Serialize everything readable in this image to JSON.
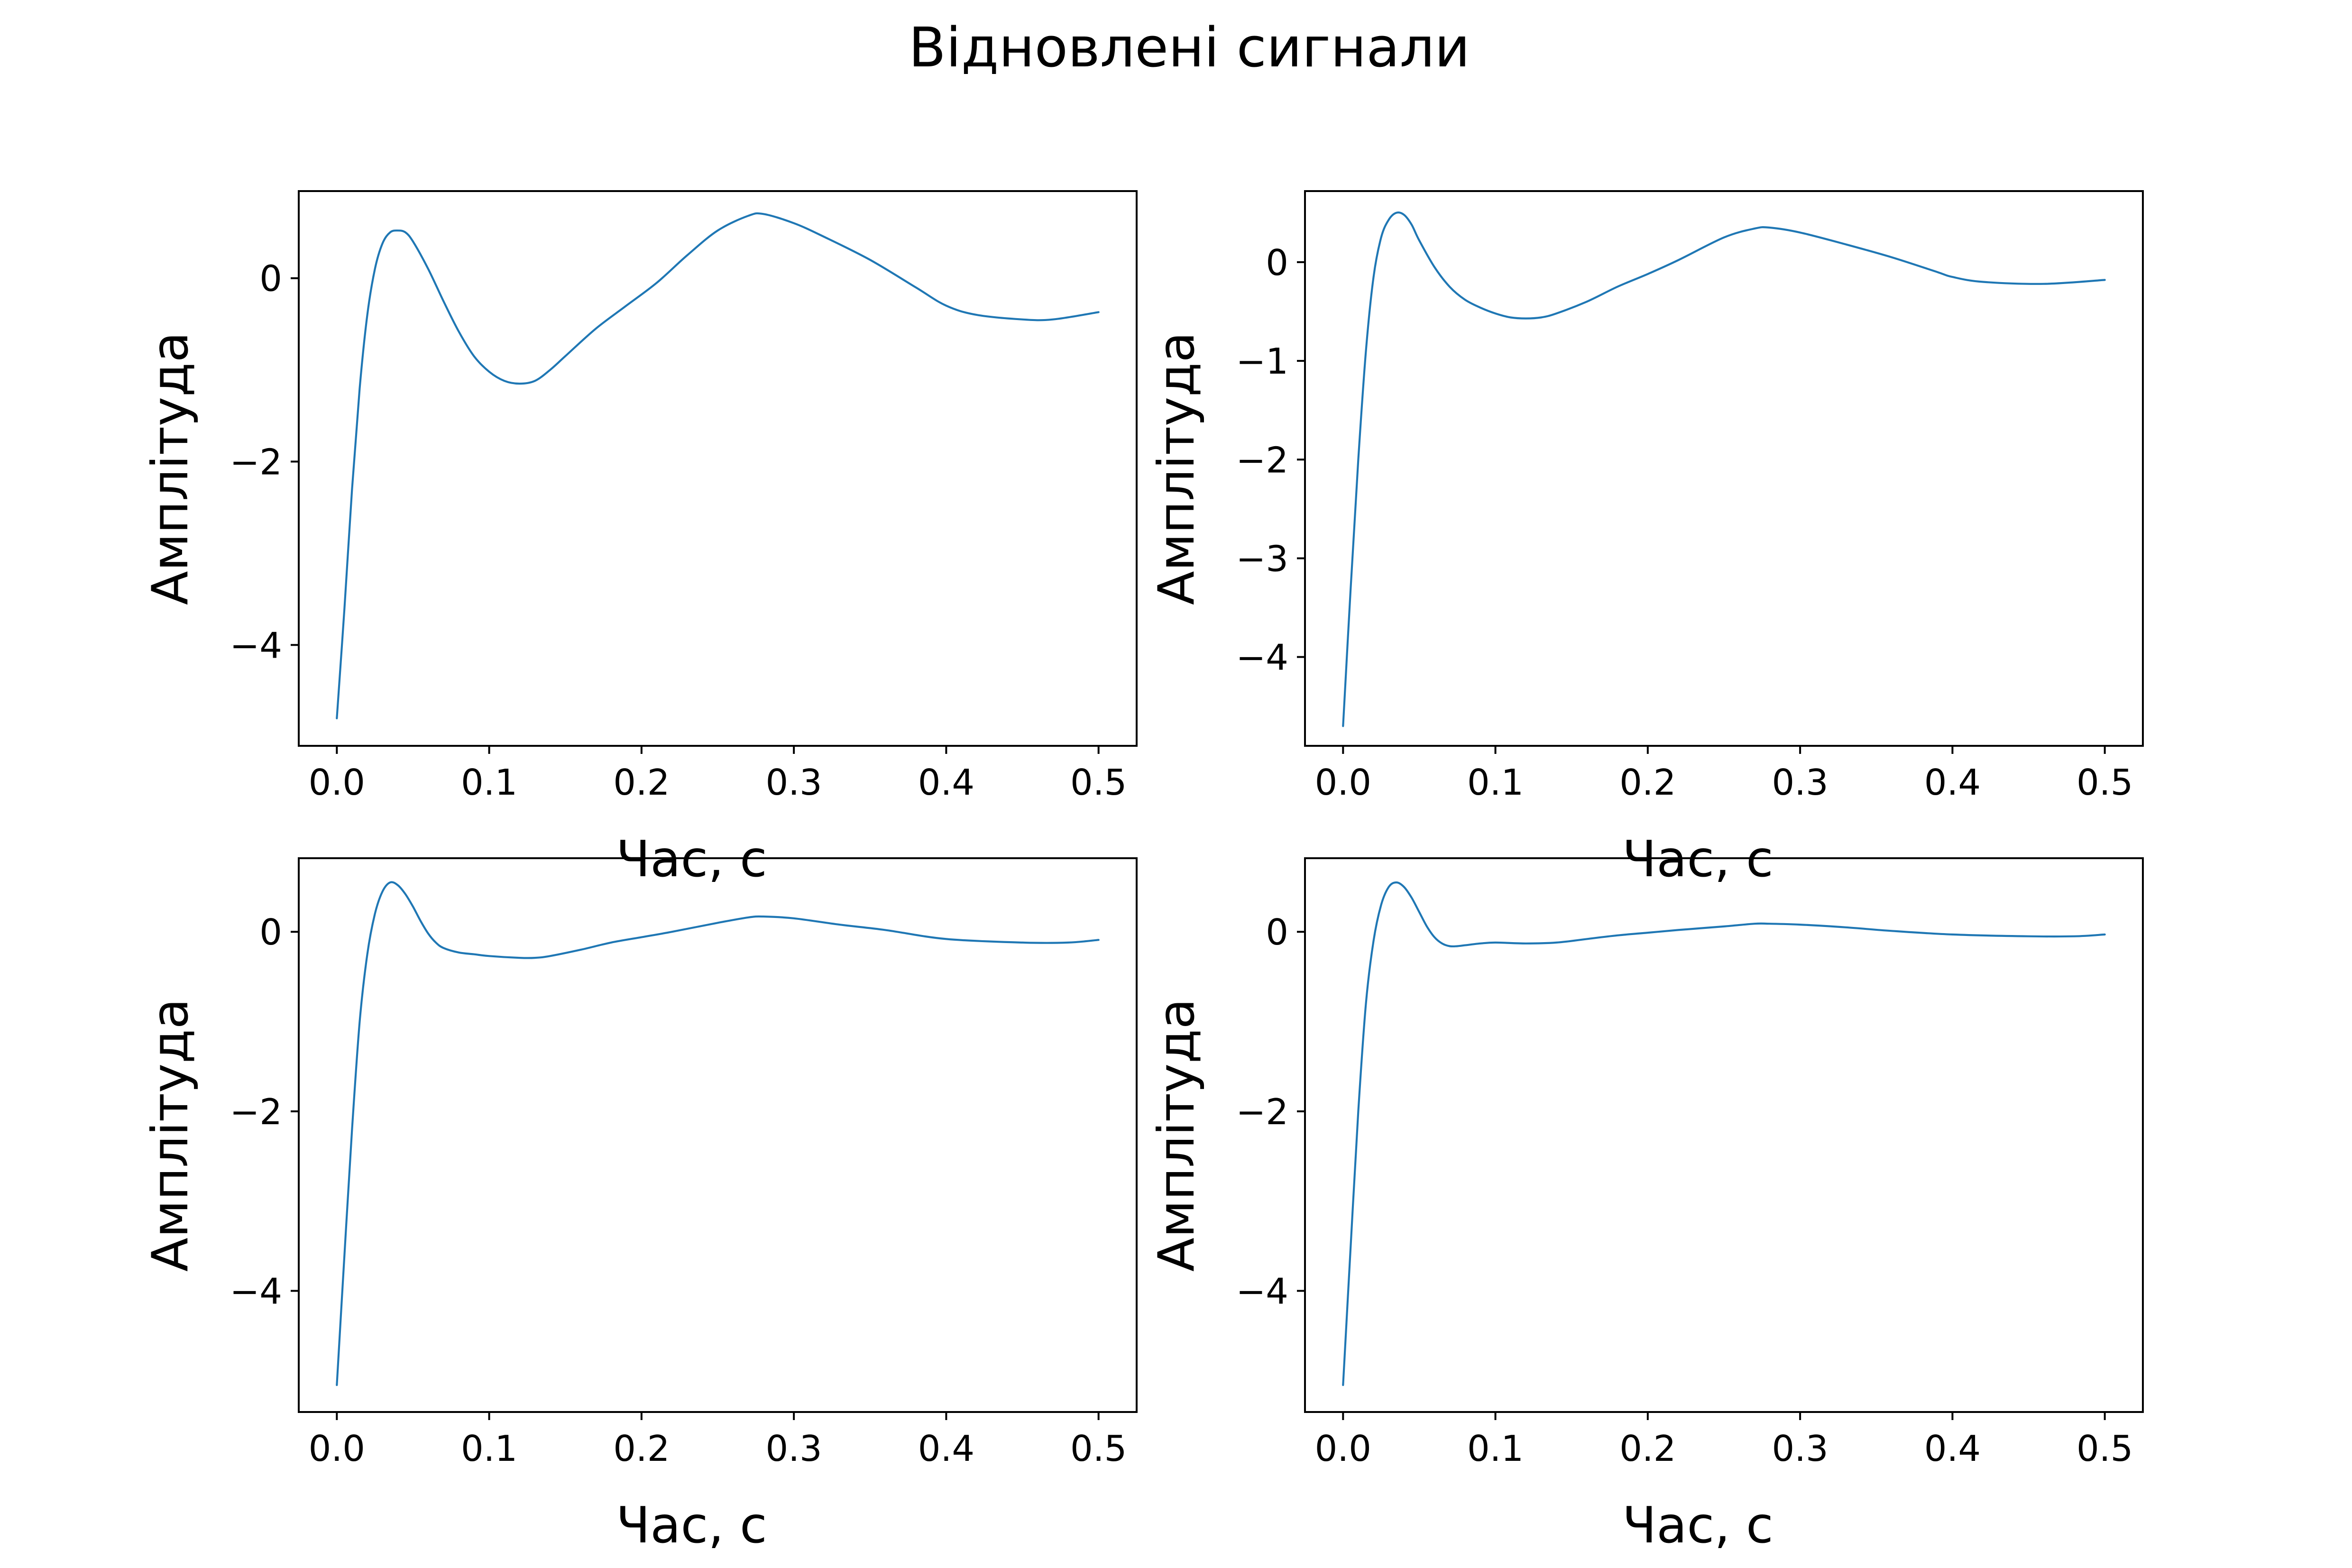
{
  "figure": {
    "title": "Відновлені сигнали"
  },
  "colors": {
    "line": "#1f77b4",
    "axes": "#000000",
    "background": "#ffffff"
  },
  "chart_data": [
    {
      "type": "line",
      "title": "",
      "xlabel": "Час, с",
      "ylabel": "Амплітуда",
      "xlim": [
        -0.025,
        0.525
      ],
      "ylim": [
        -5.1,
        0.95
      ],
      "xticks": [
        0.0,
        0.1,
        0.2,
        0.3,
        0.4,
        0.5
      ],
      "xtick_labels": [
        "0.0",
        "0.1",
        "0.2",
        "0.3",
        "0.4",
        "0.5"
      ],
      "yticks": [
        -4,
        -2,
        0
      ],
      "ytick_labels": [
        "−4",
        "−2",
        "0"
      ],
      "grid": false,
      "series": [
        {
          "x": [
            0.0,
            0.005,
            0.01,
            0.015,
            0.02,
            0.025,
            0.03,
            0.035,
            0.04,
            0.045,
            0.05,
            0.06,
            0.07,
            0.08,
            0.09,
            0.1,
            0.11,
            0.12,
            0.13,
            0.14,
            0.15,
            0.17,
            0.19,
            0.21,
            0.23,
            0.25,
            0.27,
            0.28,
            0.3,
            0.32,
            0.35,
            0.38,
            0.4,
            0.42,
            0.45,
            0.47,
            0.5
          ],
          "y": [
            -4.8,
            -3.6,
            -2.3,
            -1.2,
            -0.4,
            0.1,
            0.38,
            0.5,
            0.52,
            0.5,
            0.4,
            0.1,
            -0.25,
            -0.58,
            -0.85,
            -1.02,
            -1.12,
            -1.15,
            -1.12,
            -1.0,
            -0.85,
            -0.55,
            -0.3,
            -0.05,
            0.25,
            0.52,
            0.68,
            0.7,
            0.6,
            0.45,
            0.2,
            -0.1,
            -0.3,
            -0.4,
            -0.45,
            -0.45,
            -0.37
          ]
        }
      ]
    },
    {
      "type": "line",
      "title": "",
      "xlabel": "Час, с",
      "ylabel": "Амплітуда",
      "xlim": [
        -0.025,
        0.525
      ],
      "ylim": [
        -4.9,
        0.72
      ],
      "xticks": [
        0.0,
        0.1,
        0.2,
        0.3,
        0.4,
        0.5
      ],
      "xtick_labels": [
        "0.0",
        "0.1",
        "0.2",
        "0.3",
        "0.4",
        "0.5"
      ],
      "yticks": [
        -4,
        -3,
        -2,
        -1,
        0
      ],
      "ytick_labels": [
        "−4",
        "−3",
        "−2",
        "−1",
        "0"
      ],
      "grid": false,
      "series": [
        {
          "x": [
            0.0,
            0.005,
            0.01,
            0.015,
            0.02,
            0.025,
            0.03,
            0.035,
            0.04,
            0.045,
            0.05,
            0.06,
            0.07,
            0.08,
            0.09,
            0.1,
            0.11,
            0.12,
            0.13,
            0.14,
            0.16,
            0.18,
            0.2,
            0.22,
            0.25,
            0.27,
            0.28,
            0.3,
            0.33,
            0.36,
            0.39,
            0.4,
            0.42,
            0.46,
            0.5
          ],
          "y": [
            -4.7,
            -3.3,
            -2.0,
            -0.9,
            -0.15,
            0.25,
            0.43,
            0.5,
            0.48,
            0.38,
            0.22,
            -0.05,
            -0.25,
            -0.38,
            -0.46,
            -0.52,
            -0.56,
            -0.57,
            -0.56,
            -0.52,
            -0.4,
            -0.25,
            -0.12,
            0.02,
            0.25,
            0.34,
            0.35,
            0.3,
            0.18,
            0.05,
            -0.1,
            -0.15,
            -0.2,
            -0.22,
            -0.18
          ]
        }
      ]
    },
    {
      "type": "line",
      "title": "",
      "xlabel": "Час, с",
      "ylabel": "Амплітуда",
      "xlim": [
        -0.025,
        0.525
      ],
      "ylim": [
        -5.35,
        0.82
      ],
      "xticks": [
        0.0,
        0.1,
        0.2,
        0.3,
        0.4,
        0.5
      ],
      "xtick_labels": [
        "0.0",
        "0.1",
        "0.2",
        "0.3",
        "0.4",
        "0.5"
      ],
      "yticks": [
        -4,
        -2,
        0
      ],
      "ytick_labels": [
        "−4",
        "−2",
        "0"
      ],
      "grid": false,
      "series": [
        {
          "x": [
            0.0,
            0.005,
            0.01,
            0.015,
            0.02,
            0.025,
            0.03,
            0.035,
            0.04,
            0.045,
            0.05,
            0.055,
            0.06,
            0.065,
            0.07,
            0.08,
            0.09,
            0.1,
            0.12,
            0.13,
            0.14,
            0.16,
            0.18,
            0.2,
            0.22,
            0.25,
            0.27,
            0.28,
            0.3,
            0.33,
            0.36,
            0.4,
            0.45,
            0.48,
            0.5
          ],
          "y": [
            -5.05,
            -3.6,
            -2.2,
            -1.0,
            -0.25,
            0.2,
            0.45,
            0.55,
            0.52,
            0.42,
            0.28,
            0.12,
            -0.02,
            -0.12,
            -0.18,
            -0.23,
            -0.25,
            -0.27,
            -0.29,
            -0.29,
            -0.27,
            -0.2,
            -0.12,
            -0.06,
            0.0,
            0.1,
            0.16,
            0.17,
            0.15,
            0.08,
            0.02,
            -0.08,
            -0.12,
            -0.12,
            -0.09
          ]
        }
      ]
    },
    {
      "type": "line",
      "title": "",
      "xlabel": "Час, с",
      "ylabel": "Амплітуда",
      "xlim": [
        -0.025,
        0.525
      ],
      "ylim": [
        -5.35,
        0.82
      ],
      "xticks": [
        0.0,
        0.1,
        0.2,
        0.3,
        0.4,
        0.5
      ],
      "xtick_labels": [
        "0.0",
        "0.1",
        "0.2",
        "0.3",
        "0.4",
        "0.5"
      ],
      "yticks": [
        -4,
        -2,
        0
      ],
      "ytick_labels": [
        "−4",
        "−2",
        "0"
      ],
      "grid": false,
      "series": [
        {
          "x": [
            0.0,
            0.005,
            0.01,
            0.015,
            0.02,
            0.025,
            0.03,
            0.035,
            0.04,
            0.045,
            0.05,
            0.055,
            0.06,
            0.065,
            0.07,
            0.075,
            0.08,
            0.09,
            0.1,
            0.12,
            0.14,
            0.16,
            0.18,
            0.2,
            0.22,
            0.25,
            0.27,
            0.28,
            0.3,
            0.33,
            0.36,
            0.4,
            0.45,
            0.48,
            0.5
          ],
          "y": [
            -5.05,
            -3.5,
            -2.0,
            -0.8,
            -0.1,
            0.3,
            0.5,
            0.55,
            0.5,
            0.38,
            0.22,
            0.06,
            -0.06,
            -0.13,
            -0.16,
            -0.16,
            -0.15,
            -0.13,
            -0.12,
            -0.13,
            -0.12,
            -0.08,
            -0.04,
            -0.01,
            0.02,
            0.06,
            0.09,
            0.09,
            0.08,
            0.05,
            0.01,
            -0.03,
            -0.05,
            -0.05,
            -0.03
          ]
        }
      ]
    }
  ]
}
